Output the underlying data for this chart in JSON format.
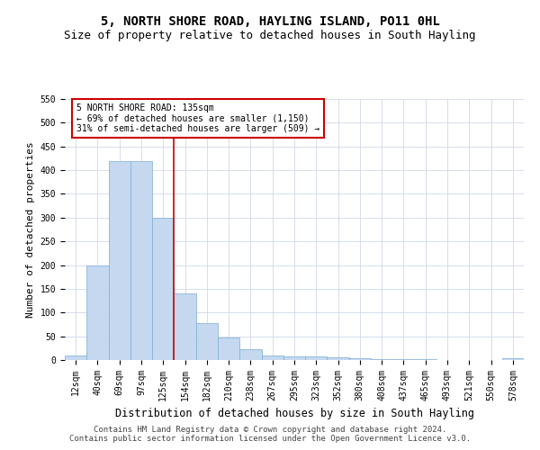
{
  "title": "5, NORTH SHORE ROAD, HAYLING ISLAND, PO11 0HL",
  "subtitle": "Size of property relative to detached houses in South Hayling",
  "xlabel": "Distribution of detached houses by size in South Hayling",
  "ylabel": "Number of detached properties",
  "categories": [
    "12sqm",
    "40sqm",
    "69sqm",
    "97sqm",
    "125sqm",
    "154sqm",
    "182sqm",
    "210sqm",
    "238sqm",
    "267sqm",
    "295sqm",
    "323sqm",
    "352sqm",
    "380sqm",
    "408sqm",
    "437sqm",
    "465sqm",
    "493sqm",
    "521sqm",
    "550sqm",
    "578sqm"
  ],
  "values": [
    10,
    200,
    420,
    420,
    300,
    140,
    78,
    48,
    22,
    10,
    8,
    7,
    5,
    3,
    2,
    1,
    1,
    0,
    0,
    0,
    3
  ],
  "bar_color": "#c5d8f0",
  "bar_edge_color": "#7aadd4",
  "vline_x": 4.5,
  "vline_color": "#cc0000",
  "annotation_title": "5 NORTH SHORE ROAD: 135sqm",
  "annotation_line1": "← 69% of detached houses are smaller (1,150)",
  "annotation_line2": "31% of semi-detached houses are larger (509) →",
  "annotation_box_color": "#ffffff",
  "annotation_box_edge": "#cc0000",
  "ylim": [
    0,
    550
  ],
  "yticks": [
    0,
    50,
    100,
    150,
    200,
    250,
    300,
    350,
    400,
    450,
    500,
    550
  ],
  "footer1": "Contains HM Land Registry data © Crown copyright and database right 2024.",
  "footer2": "Contains public sector information licensed under the Open Government Licence v3.0.",
  "bg_color": "#ffffff",
  "grid_color": "#d0d8e8",
  "title_fontsize": 10,
  "subtitle_fontsize": 9,
  "xlabel_fontsize": 8.5,
  "ylabel_fontsize": 8,
  "tick_fontsize": 7,
  "annot_fontsize": 7,
  "footer_fontsize": 6.5
}
